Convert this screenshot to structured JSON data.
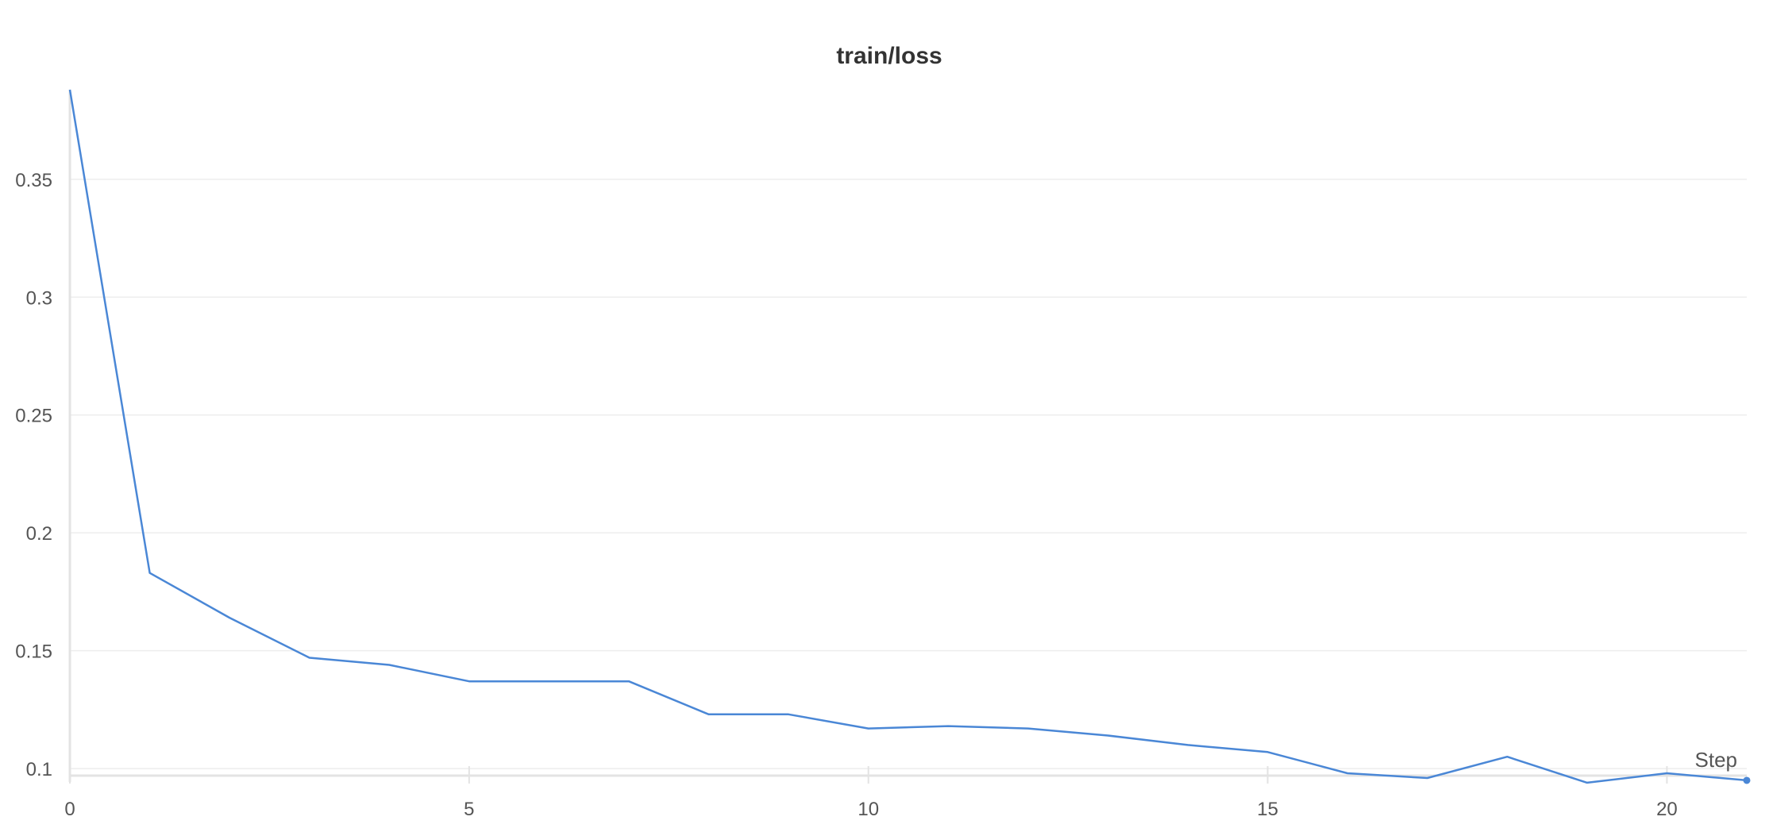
{
  "chart_data": {
    "type": "line",
    "title": "train/loss",
    "xlabel": "Step",
    "ylabel": "",
    "xlim": [
      0,
      21
    ],
    "ylim": [
      0.097,
      0.388
    ],
    "x_ticks": [
      "0",
      "5",
      "10",
      "15",
      "20"
    ],
    "y_ticks": [
      "0.1",
      "0.15",
      "0.2",
      "0.25",
      "0.3",
      "0.35"
    ],
    "grid": "horizontal",
    "legend": "none",
    "series": [
      {
        "color": "#4a87d6",
        "x": [
          0,
          1,
          2,
          3,
          4,
          5,
          6,
          7,
          8,
          9,
          10,
          11,
          12,
          13,
          14,
          15,
          16,
          17,
          18,
          19,
          20,
          21
        ],
        "values": [
          0.388,
          0.183,
          0.164,
          0.147,
          0.144,
          0.137,
          0.137,
          0.137,
          0.123,
          0.123,
          0.117,
          0.118,
          0.117,
          0.114,
          0.11,
          0.107,
          0.098,
          0.096,
          0.105,
          0.094,
          0.098,
          0.095
        ]
      }
    ]
  }
}
